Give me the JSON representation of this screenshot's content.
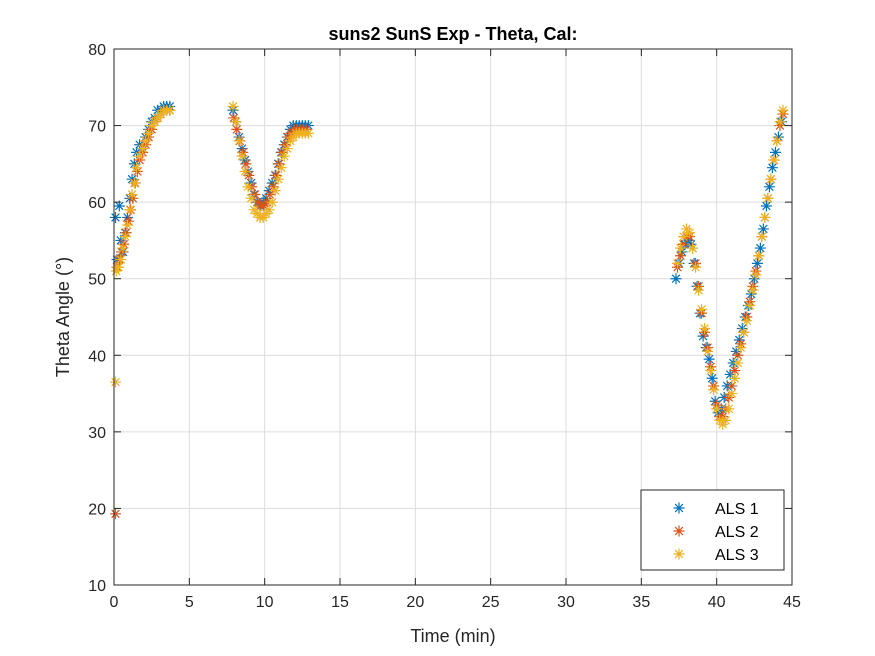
{
  "chart_data": {
    "type": "scatter",
    "title": "suns2 SunS Exp - Theta, Cal:",
    "xlabel": "Time (min)",
    "ylabel": "Theta Angle (°)",
    "xlim": [
      0,
      45
    ],
    "ylim": [
      10,
      80
    ],
    "xticks": [
      0,
      5,
      10,
      15,
      20,
      25,
      30,
      35,
      40,
      45
    ],
    "yticks": [
      10,
      20,
      30,
      40,
      50,
      60,
      70,
      80
    ],
    "grid": true,
    "legend_position": "bottom-right",
    "marker": "asterisk",
    "series": [
      {
        "name": "ALS 1",
        "color": "#0072BD",
        "x": [
          0.1,
          0.2,
          0.35,
          0.45,
          0.6,
          0.75,
          0.9,
          1.05,
          1.2,
          1.35,
          1.5,
          1.7,
          1.9,
          2.1,
          2.3,
          2.5,
          2.7,
          2.9,
          3.1,
          3.3,
          3.5,
          3.7,
          7.9,
          8.1,
          8.3,
          8.5,
          8.7,
          8.9,
          9.1,
          9.3,
          9.5,
          9.7,
          9.9,
          10.1,
          10.3,
          10.5,
          10.7,
          10.9,
          11.1,
          11.3,
          11.5,
          11.7,
          11.9,
          12.1,
          12.3,
          12.5,
          12.7,
          12.9,
          37.3,
          37.5,
          37.7,
          37.9,
          38.1,
          38.3,
          38.5,
          38.7,
          38.9,
          39.1,
          39.3,
          39.5,
          39.7,
          39.9,
          40.1,
          40.3,
          40.5,
          40.7,
          40.9,
          41.1,
          41.3,
          41.5,
          41.7,
          41.9,
          42.1,
          42.3,
          42.5,
          42.7,
          42.9,
          43.1,
          43.3,
          43.5,
          43.7,
          43.9,
          44.1,
          44.3
        ],
        "y": [
          58,
          52.5,
          59.5,
          55,
          53.5,
          56,
          58,
          60.5,
          63,
          65,
          66.5,
          67.5,
          67,
          68.5,
          69.5,
          70.5,
          71,
          72,
          72,
          72.5,
          72.5,
          72.5,
          72,
          70.5,
          68.5,
          67,
          65.5,
          64,
          62.5,
          61,
          60,
          59.5,
          60,
          60.5,
          61.5,
          62.5,
          63.5,
          65,
          66.5,
          67.5,
          68.5,
          69.5,
          70,
          70,
          70,
          70,
          70,
          70,
          50,
          52,
          53.5,
          54.5,
          55,
          54.5,
          52,
          49,
          45.5,
          42.5,
          41,
          39.5,
          37,
          34,
          32.5,
          33,
          34.5,
          36,
          37.5,
          39,
          40.5,
          42,
          43.5,
          45,
          46.5,
          48,
          50,
          52,
          54,
          56.5,
          59.5,
          62,
          64.5,
          66.5,
          68.5,
          70.5
        ]
      },
      {
        "name": "ALS 2",
        "color": "#D95319",
        "x": [
          0.1,
          0.2,
          0.35,
          0.5,
          0.65,
          0.8,
          0.95,
          1.1,
          1.25,
          1.4,
          1.55,
          1.7,
          1.9,
          2.1,
          2.3,
          2.5,
          2.7,
          2.9,
          3.1,
          3.3,
          3.5,
          3.7,
          7.95,
          8.15,
          8.35,
          8.55,
          8.75,
          8.95,
          9.15,
          9.35,
          9.55,
          9.75,
          9.95,
          10.15,
          10.35,
          10.55,
          10.75,
          10.95,
          11.15,
          11.35,
          11.55,
          11.75,
          11.95,
          12.15,
          12.35,
          12.55,
          12.75,
          37.4,
          37.6,
          37.8,
          38.0,
          38.2,
          38.4,
          38.6,
          38.8,
          39.0,
          39.2,
          39.4,
          39.6,
          39.8,
          40.0,
          40.2,
          40.4,
          40.6,
          40.8,
          41.0,
          41.2,
          41.4,
          41.6,
          41.8,
          42.0,
          42.2,
          42.4,
          42.6,
          42.8,
          43.0,
          43.2,
          43.4,
          43.6,
          43.8,
          44.0,
          44.2,
          44.4
        ],
        "y": [
          19.3,
          51.5,
          52.5,
          53.5,
          54.5,
          56,
          57.5,
          59,
          60.5,
          62.5,
          64,
          65.5,
          66.5,
          67.5,
          68.5,
          69.5,
          70.5,
          71,
          71.5,
          72,
          72,
          72,
          71,
          69.5,
          68,
          66.5,
          65,
          63.5,
          62,
          61,
          60,
          59.5,
          59.5,
          60,
          61,
          62,
          63.5,
          65,
          66.5,
          67.5,
          68.5,
          69,
          69.5,
          69.5,
          69.5,
          69.5,
          69.5,
          51.5,
          53,
          54.5,
          55.5,
          55.5,
          54,
          52,
          49,
          45.5,
          43,
          41,
          38.5,
          36,
          33.5,
          32,
          32,
          33,
          34.5,
          36,
          38,
          40,
          41.5,
          43,
          45,
          47,
          49,
          51,
          53,
          55.5,
          58,
          60.5,
          63,
          65.5,
          68,
          70,
          71.5
        ]
      },
      {
        "name": "ALS 3",
        "color": "#EDB120",
        "x": [
          0.1,
          0.15,
          0.3,
          0.45,
          0.6,
          0.75,
          0.9,
          1.05,
          1.2,
          1.35,
          1.5,
          1.7,
          1.9,
          2.1,
          2.3,
          2.5,
          2.7,
          2.9,
          3.1,
          3.3,
          3.5,
          3.7,
          7.9,
          8.1,
          8.3,
          8.5,
          8.7,
          8.9,
          9.1,
          9.3,
          9.5,
          9.7,
          9.9,
          10.1,
          10.3,
          10.5,
          10.7,
          10.9,
          11.1,
          11.3,
          11.5,
          11.7,
          11.9,
          12.1,
          12.3,
          12.5,
          12.7,
          12.9,
          37.4,
          37.6,
          37.8,
          38.0,
          38.2,
          38.4,
          38.6,
          38.8,
          39.0,
          39.2,
          39.4,
          39.6,
          39.8,
          40.0,
          40.2,
          40.4,
          40.6,
          40.8,
          41.0,
          41.2,
          41.4,
          41.6,
          41.8,
          42.0,
          42.2,
          42.4,
          42.6,
          42.8,
          43.0,
          43.2,
          43.4,
          43.6,
          43.8,
          44.0,
          44.2,
          44.4
        ],
        "y": [
          36.5,
          51,
          51.5,
          52.5,
          54,
          55.5,
          57,
          59,
          61,
          62.5,
          64.5,
          66,
          67,
          68,
          69,
          70,
          70.5,
          71,
          71.5,
          72,
          72,
          72,
          72.5,
          70.5,
          68,
          66,
          64,
          62,
          60.5,
          59,
          58.5,
          58,
          58,
          58.5,
          59,
          60,
          61.5,
          63,
          64.5,
          66,
          67,
          68,
          68.5,
          69,
          69,
          69,
          69,
          69,
          52,
          54,
          55.5,
          56.5,
          56,
          54,
          51.5,
          48.5,
          46,
          43.5,
          40.5,
          38,
          35.5,
          33,
          31.5,
          31,
          31.5,
          33,
          35,
          37,
          39,
          41,
          43,
          44.5,
          46.5,
          48.5,
          50.5,
          53,
          55.5,
          58,
          60.5,
          63,
          65.5,
          68,
          70.5,
          72
        ]
      }
    ]
  }
}
